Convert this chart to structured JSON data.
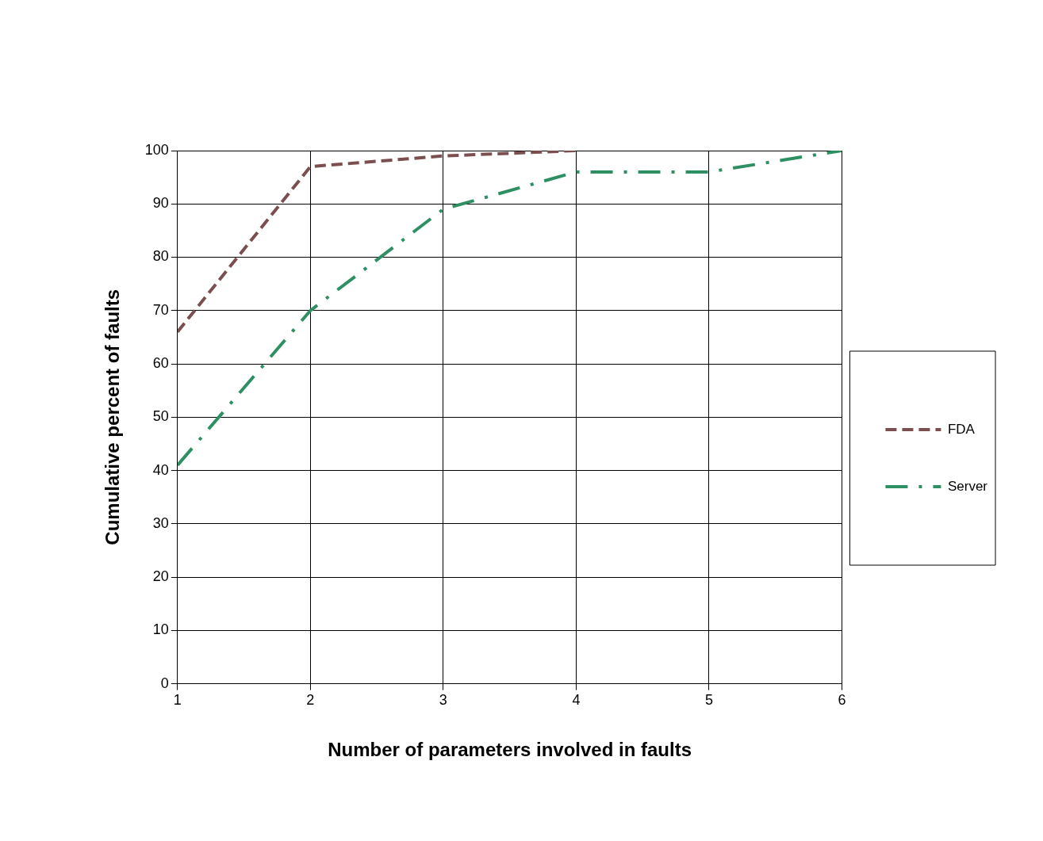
{
  "chart_data": {
    "type": "line",
    "xlabel": "Number of parameters involved in faults",
    "ylabel": "Cumulative percent of faults",
    "xlim": [
      1,
      6
    ],
    "xticks": [
      1,
      2,
      3,
      4,
      5,
      6
    ],
    "ylim": [
      0,
      100
    ],
    "yticks": [
      0,
      10,
      20,
      30,
      40,
      50,
      60,
      70,
      80,
      90,
      100
    ],
    "grid": true,
    "legend": "right",
    "marker": "none",
    "series": [
      {
        "name": "FDA",
        "color": "#7b4f4f",
        "x": [
          1,
          2,
          3,
          4
        ],
        "values": [
          66,
          97,
          99,
          100
        ],
        "line_style": "dashed"
      },
      {
        "name": "Server",
        "color": "#2e9062",
        "x": [
          1,
          2,
          3,
          4,
          5,
          6
        ],
        "values": [
          41,
          70,
          89,
          96,
          96,
          100
        ],
        "line_style": "dashdot"
      }
    ]
  }
}
